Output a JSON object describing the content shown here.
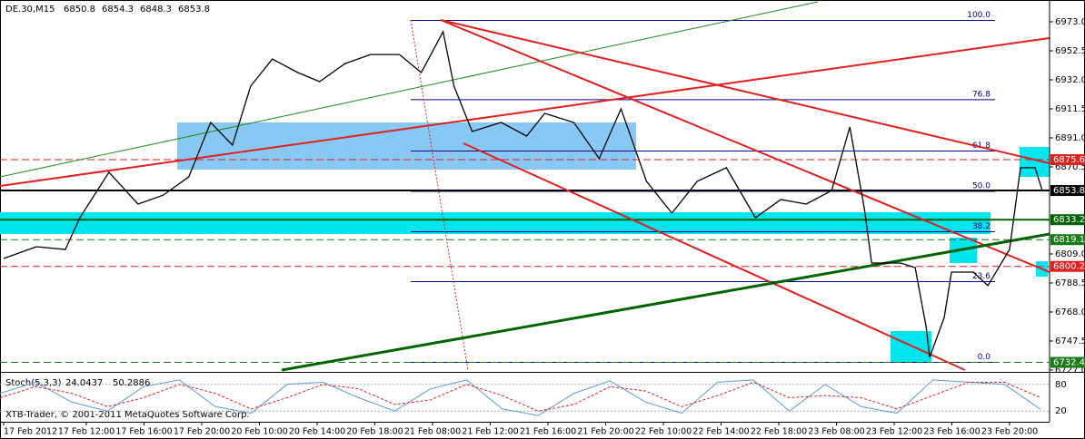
{
  "chart_data": {
    "type": "line",
    "title": "DE.30,M15",
    "quote": [
      6850.8,
      6854.3,
      6848.3,
      6853.8
    ],
    "x": [
      1,
      10,
      18,
      22,
      30,
      38,
      45,
      52,
      58,
      64,
      69,
      75,
      82,
      88,
      95,
      102,
      110,
      116,
      122,
      125,
      130,
      138,
      145,
      150,
      158,
      165,
      171,
      178,
      185,
      192,
      200,
      208,
      215,
      222,
      229,
      234,
      238,
      240,
      248,
      252,
      255,
      256,
      260,
      262,
      268,
      272,
      278,
      281,
      285,
      287
    ],
    "values": [
      6805.8,
      6814.1,
      6812.2,
      6834.6,
      6866.7,
      6844.2,
      6850.6,
      6863.5,
      6901.9,
      6885.9,
      6927.5,
      6946.7,
      6937.1,
      6930.7,
      6943.5,
      6949.9,
      6949.9,
      6937.1,
      6966.0,
      6927.5,
      6895.5,
      6901.9,
      6892.3,
      6908.3,
      6901.9,
      6876.3,
      6911.5,
      6860.3,
      6837.8,
      6860.3,
      6869.9,
      6834.6,
      6847.4,
      6844.2,
      6853.8,
      6898.7,
      6841.0,
      6802.6,
      6802.6,
      6799.4,
      6757.8,
      6736.0,
      6764.2,
      6796.2,
      6796.2,
      6786.6,
      6812.2,
      6869.9,
      6869.9,
      6853.8
    ],
    "color": "#000000",
    "xlim": [
      0,
      289
    ],
    "ylim": [
      6725.7,
      6987.1
    ],
    "yticks": [
      {
        "value": 6973,
        "label": "6973.0"
      },
      6952.5,
      {
        "value": 6932,
        "label": "6932.0"
      },
      6911.5,
      {
        "value": 6891,
        "label": "6891.0"
      },
      6870.5,
      {
        "value": 6809,
        "label": "6809.0"
      },
      6788.5,
      {
        "value": 6768,
        "label": "6768.0"
      },
      6747.5,
      {
        "value": 6727,
        "label": "6727.0"
      }
    ],
    "price_levels": [
      {
        "value": 6875.6,
        "color": "#e02020",
        "dash": true
      },
      {
        "value": 6853.8,
        "color": "#000000",
        "dash": false
      },
      {
        "value": 6833.2,
        "color": "#006400",
        "dash": false
      },
      {
        "value": 6819.1,
        "color": "#1a7a1a",
        "dash": true
      },
      {
        "value": 6800.2,
        "color": "#e02020",
        "dash": true
      },
      {
        "value": 6732.4,
        "color": "#1a7a1a",
        "dash": true
      }
    ],
    "fibo": {
      "high": 6974,
      "low": 6732.4,
      "levels": [
        {
          "value": 100,
          "label": "100.0"
        },
        76.8,
        61.8,
        {
          "value": 50,
          "label": "50.0"
        },
        38.2,
        23.6,
        {
          "value": 0,
          "label": "0.0"
        }
      ]
    },
    "time_labels": [
      "17 Feb 2012",
      "17 Feb 12:00",
      "17 Feb 16:00",
      "17 Feb 20:00",
      "20 Feb 10:00",
      "20 Feb 14:00",
      "20 Feb 18:00",
      "21 Feb 08:00",
      "21 Feb 12:00",
      "21 Feb 16:00",
      "21 Feb 20:00",
      "22 Feb 10:00",
      "22 Feb 14:00",
      "22 Feb 18:00",
      "23 Feb 08:00",
      "23 Feb 12:00",
      "23 Feb 16:00",
      "23 Feb 20:00"
    ],
    "stoch": {
      "name": "Stoch(5,3,3)",
      "ylim": [
        0,
        100
      ],
      "yticks": [
        80,
        20
      ],
      "series": [
        {
          "color": "#5b9bd5",
          "values": [
            60,
            85,
            40,
            20,
            75,
            90,
            30,
            15,
            80,
            85,
            50,
            20,
            70,
            90,
            25,
            10,
            60,
            88,
            40,
            15,
            85,
            90,
            20,
            80,
            30,
            15,
            90,
            85,
            80,
            24.0437
          ]
        },
        {
          "color": "#e02020",
          "values": [
            50,
            75,
            60,
            30,
            50,
            80,
            60,
            25,
            50,
            80,
            70,
            35,
            45,
            80,
            55,
            20,
            35,
            75,
            65,
            30,
            55,
            85,
            50,
            55,
            50,
            25,
            55,
            85,
            85,
            50.2886
          ]
        }
      ]
    },
    "watermark": "XTB-Trader, © 2001-2011 MetaQuotes Software Corp."
  }
}
